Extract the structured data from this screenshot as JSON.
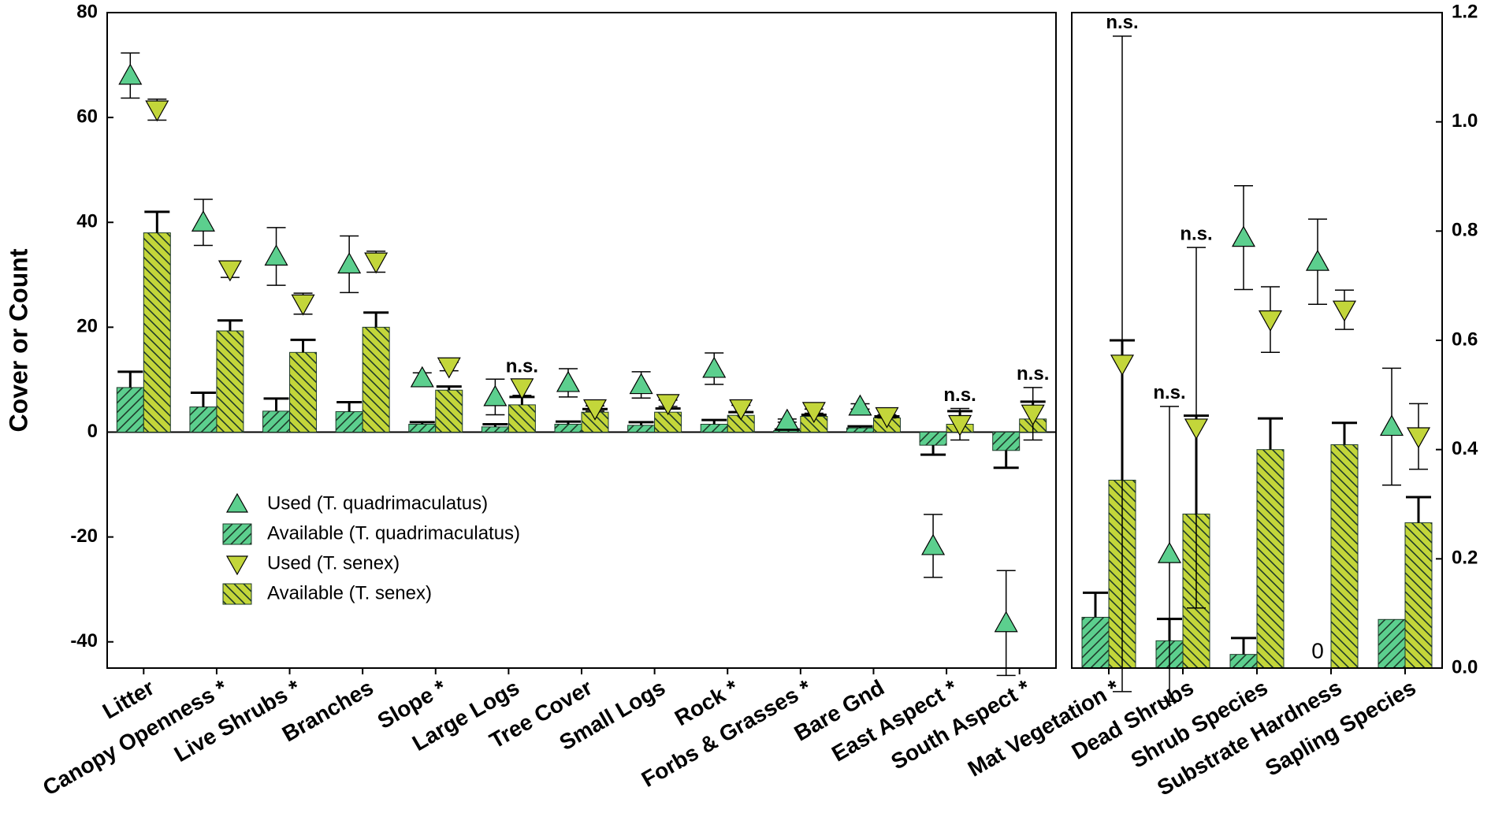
{
  "chart_data": [
    {
      "type": "bar",
      "y_label": "Cover or Count",
      "ylim": [
        -45,
        80
      ],
      "yticks": [
        -40,
        -20,
        0,
        20,
        40,
        60,
        80
      ],
      "yaxis_side": "left",
      "zero_line": true,
      "legend": "lower left",
      "categories": [
        "Litter",
        "Canopy Openness *",
        "Live Shrubs *",
        "Branches",
        "Slope *",
        "Large Logs",
        "Tree Cover",
        "Small Logs",
        "Rock *",
        "Forbs & Grasses *",
        "Bare Gnd",
        "East Aspect *",
        "South Aspect *"
      ],
      "series": [
        {
          "name": "Used (T. quadrimaculatus)",
          "kind": "marker",
          "marker": "triangle-up",
          "color": "#5ccf8e",
          "values": [
            68,
            40,
            33.5,
            32,
            10.3,
            6.7,
            9.4,
            9,
            12.1,
            2.2,
            4.9,
            -21.7,
            -36.4
          ],
          "errors": [
            4.3,
            4.4,
            5.5,
            5.4,
            1,
            3.4,
            2.7,
            2.5,
            3,
            0.3,
            0.5,
            6,
            10
          ]
        },
        {
          "name": "Available (T. quadrimaculatus)",
          "kind": "bar",
          "hatch": "/",
          "color": "#5ccf8e",
          "values": [
            8.5,
            4.8,
            4,
            3.9,
            1.5,
            1,
            1.5,
            1.3,
            1.5,
            0.3,
            0.8,
            -2.5,
            -3.5
          ],
          "errors": [
            3,
            2.7,
            2.4,
            1.8,
            0.4,
            0.5,
            0.5,
            0.6,
            0.8,
            0.2,
            0.3,
            1.8,
            3.3
          ]
        },
        {
          "name": "Used (T. senex)",
          "kind": "marker",
          "marker": "triangle-down",
          "color": "#c3d63a",
          "values": [
            61.5,
            31,
            24.5,
            32.5,
            12.5,
            8.5,
            4.5,
            5.5,
            4.5,
            4,
            3,
            1.5,
            3.5
          ],
          "errors": [
            2,
            1.5,
            2,
            2,
            0.8,
            1.5,
            0.5,
            0.6,
            0.6,
            0.4,
            0.3,
            3,
            5
          ]
        },
        {
          "name": "Available (T. senex)",
          "kind": "bar",
          "hatch": "\\",
          "color": "#c3d63a",
          "values": [
            38,
            19.3,
            15.2,
            20,
            8,
            5.2,
            3.8,
            3.8,
            3.2,
            3,
            2.7,
            1.5,
            2.5
          ],
          "errors": [
            4,
            2,
            2.4,
            2.8,
            0.7,
            1.5,
            0.6,
            0.7,
            0.6,
            0.3,
            0.3,
            2.5,
            3.3
          ]
        }
      ],
      "annotations": [
        {
          "text": "n.s.",
          "category": 5,
          "series": 2
        },
        {
          "text": "n.s.",
          "category": 11,
          "series": 2
        },
        {
          "text": "n.s.",
          "category": 12,
          "series": 2
        }
      ]
    },
    {
      "type": "bar",
      "ylim": [
        0,
        1.2
      ],
      "yticks": [
        {
          "value": 0,
          "label": "0.0"
        },
        0.2,
        0.4,
        0.6,
        0.8,
        {
          "value": 1,
          "label": "1.0"
        },
        1.2
      ],
      "yaxis_side": "right",
      "categories": [
        "Mat Vegetation *",
        "Dead Shrubs",
        "Shrub Species",
        "Substrate Hardness",
        "Sapling Species"
      ],
      "series": [
        {
          "kind": "marker",
          "marker": "triangle-up",
          "color": "#5ccf8e",
          "values": [
            null,
            0.209,
            0.788,
            0.744,
            0.442
          ],
          "errors": [
            null,
            0.27,
            0.095,
            0.078,
            0.107
          ]
        },
        {
          "kind": "bar",
          "hatch": "/",
          "color": "#5ccf8e",
          "values": [
            0.093,
            0.05,
            0.025,
            0,
            0.089
          ],
          "errors": [
            0.045,
            0.04,
            0.03,
            0,
            0
          ]
        },
        {
          "kind": "marker",
          "marker": "triangle-down",
          "color": "#c3d63a",
          "values": [
            0.557,
            0.44,
            0.638,
            0.656,
            0.424
          ],
          "errors": [
            0.6,
            0.33,
            0.06,
            0.036,
            0.06
          ]
        },
        {
          "kind": "bar",
          "hatch": "\\",
          "color": "#c3d63a",
          "values": [
            0.344,
            0.282,
            0.4,
            0.409,
            0.266
          ],
          "errors": [
            0.256,
            0.18,
            0.057,
            0.04,
            0.047
          ]
        }
      ],
      "annotations": [
        {
          "text": "n.s.",
          "category": 0,
          "series": 2
        },
        {
          "text": "n.s.",
          "category": 1,
          "series": 0
        },
        {
          "text": "n.s.",
          "category": 1,
          "series": 2
        },
        {
          "text": "0",
          "category": 3,
          "series": 1
        }
      ]
    }
  ]
}
